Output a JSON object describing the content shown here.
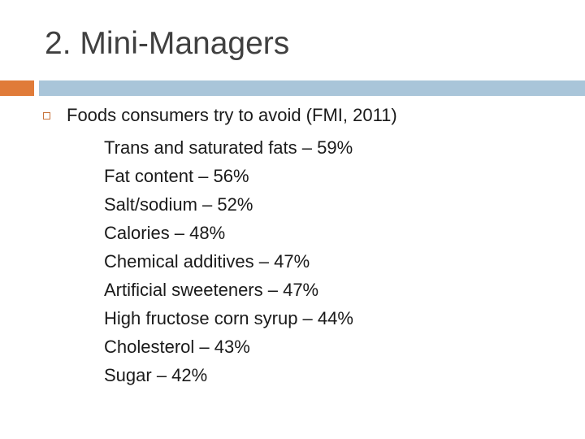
{
  "title": "2. Mini-Managers",
  "bullet": {
    "text": "Foods consumers try to avoid (FMI, 2011)",
    "items": [
      "Trans and saturated fats – 59%",
      "Fat content – 56%",
      "Salt/sodium – 52%",
      "Calories – 48%",
      "Chemical additives – 47%",
      "Artificial sweeteners – 47%",
      "High fructose corn syrup – 44%",
      "Cholesterol – 43%",
      "Sugar – 42%"
    ]
  }
}
